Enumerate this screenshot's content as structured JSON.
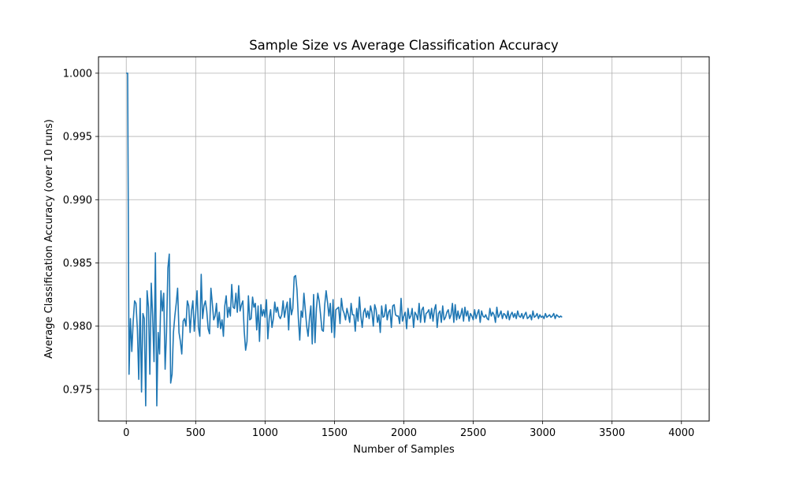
{
  "chart_data": {
    "type": "line",
    "title": "Sample Size vs Average Classification Accuracy",
    "xlabel": "Number of Samples",
    "ylabel": "Average Classification Accuracy (over 10 runs)",
    "xlim": [
      -200,
      4200
    ],
    "ylim": [
      0.9725,
      1.0013
    ],
    "x_ticks": [
      0,
      500,
      1000,
      1500,
      2000,
      2500,
      3000,
      3500,
      4000
    ],
    "y_ticks": [
      0.975,
      0.98,
      0.985,
      0.99,
      0.995,
      1.0
    ],
    "x_tick_labels": [
      "0",
      "500",
      "1000",
      "1500",
      "2000",
      "2500",
      "3000",
      "3500",
      "4000"
    ],
    "y_tick_labels": [
      "0.975",
      "0.980",
      "0.985",
      "0.990",
      "0.995",
      "1.000"
    ],
    "grid": true,
    "series_color": "#1f77b4",
    "series": [
      {
        "x_start": 0,
        "x_step": 10,
        "values": [
          1.0,
          1.0,
          0.9762,
          0.9806,
          0.978,
          0.9804,
          0.982,
          0.9818,
          0.9798,
          0.9758,
          0.9822,
          0.9748,
          0.981,
          0.9806,
          0.9737,
          0.9828,
          0.9815,
          0.9762,
          0.9834,
          0.9808,
          0.9772,
          0.9858,
          0.9737,
          0.9795,
          0.9778,
          0.9828,
          0.9812,
          0.9826,
          0.9766,
          0.9795,
          0.9846,
          0.9857,
          0.9755,
          0.9762,
          0.9795,
          0.9808,
          0.9818,
          0.983,
          0.9795,
          0.9788,
          0.9778,
          0.9804,
          0.9806,
          0.98,
          0.982,
          0.9816,
          0.9795,
          0.9812,
          0.982,
          0.9796,
          0.981,
          0.9828,
          0.9799,
          0.9792,
          0.9841,
          0.9806,
          0.9816,
          0.982,
          0.9812,
          0.9798,
          0.9794,
          0.983,
          0.9818,
          0.9805,
          0.9808,
          0.9818,
          0.9799,
          0.9811,
          0.9798,
          0.9805,
          0.9792,
          0.9816,
          0.9824,
          0.9807,
          0.9815,
          0.9808,
          0.9833,
          0.9815,
          0.9814,
          0.9826,
          0.9811,
          0.9832,
          0.9812,
          0.9817,
          0.982,
          0.9796,
          0.9781,
          0.9788,
          0.9824,
          0.9805,
          0.9806,
          0.9823,
          0.9815,
          0.9818,
          0.9797,
          0.9816,
          0.9788,
          0.9817,
          0.9808,
          0.9813,
          0.9807,
          0.9821,
          0.979,
          0.9806,
          0.9813,
          0.9799,
          0.9806,
          0.9819,
          0.9811,
          0.9815,
          0.9808,
          0.9806,
          0.9809,
          0.982,
          0.9807,
          0.9814,
          0.9819,
          0.9797,
          0.9822,
          0.9809,
          0.9814,
          0.9839,
          0.984,
          0.9829,
          0.9806,
          0.9789,
          0.9812,
          0.9807,
          0.9826,
          0.9813,
          0.98,
          0.9792,
          0.9806,
          0.9816,
          0.9786,
          0.9825,
          0.9787,
          0.9814,
          0.9826,
          0.982,
          0.9809,
          0.9797,
          0.9796,
          0.9817,
          0.9828,
          0.9819,
          0.9808,
          0.9818,
          0.9795,
          0.9821,
          0.9791,
          0.9813,
          0.9814,
          0.9815,
          0.9802,
          0.9822,
          0.9813,
          0.981,
          0.9805,
          0.9814,
          0.9809,
          0.9803,
          0.9818,
          0.9809,
          0.9809,
          0.9796,
          0.9814,
          0.9804,
          0.9823,
          0.9808,
          0.9799,
          0.9811,
          0.9814,
          0.9807,
          0.9812,
          0.9806,
          0.9816,
          0.9811,
          0.98,
          0.9817,
          0.9813,
          0.9803,
          0.9809,
          0.9795,
          0.9816,
          0.9807,
          0.9808,
          0.9817,
          0.9805,
          0.9811,
          0.9813,
          0.9799,
          0.9816,
          0.9817,
          0.9809,
          0.9808,
          0.9808,
          0.9802,
          0.9822,
          0.9804,
          0.9808,
          0.9811,
          0.9798,
          0.9814,
          0.9806,
          0.9808,
          0.9814,
          0.9799,
          0.9811,
          0.9809,
          0.9805,
          0.9818,
          0.9803,
          0.9813,
          0.9815,
          0.9803,
          0.981,
          0.9811,
          0.9813,
          0.9806,
          0.9814,
          0.9804,
          0.9813,
          0.9817,
          0.9799,
          0.981,
          0.9812,
          0.9803,
          0.9816,
          0.9805,
          0.9807,
          0.9811,
          0.9813,
          0.9806,
          0.9809,
          0.9818,
          0.9803,
          0.9817,
          0.9805,
          0.9812,
          0.9806,
          0.9809,
          0.9814,
          0.9804,
          0.9815,
          0.9808,
          0.9812,
          0.9804,
          0.981,
          0.9808,
          0.9805,
          0.9813,
          0.9806,
          0.981,
          0.9813,
          0.9803,
          0.9812,
          0.9808,
          0.9807,
          0.9809,
          0.9806,
          0.9805,
          0.9814,
          0.9808,
          0.9811,
          0.9809,
          0.9803,
          0.9815,
          0.9807,
          0.9809,
          0.9812,
          0.9806,
          0.981,
          0.9809,
          0.9806,
          0.9812,
          0.9805,
          0.9809,
          0.9811,
          0.9807,
          0.981,
          0.9806,
          0.9812,
          0.9808,
          0.9807,
          0.981,
          0.9806,
          0.9809,
          0.9811,
          0.9806,
          0.9807,
          0.9809,
          0.9805,
          0.9812,
          0.9807,
          0.9808,
          0.981,
          0.9806,
          0.9809,
          0.9807,
          0.9808,
          0.9806,
          0.981,
          0.9807,
          0.9808,
          0.9809,
          0.9807,
          0.9808,
          0.981,
          0.9806,
          0.9809,
          0.9808,
          0.9807,
          0.9808,
          0.9807
        ]
      }
    ]
  }
}
